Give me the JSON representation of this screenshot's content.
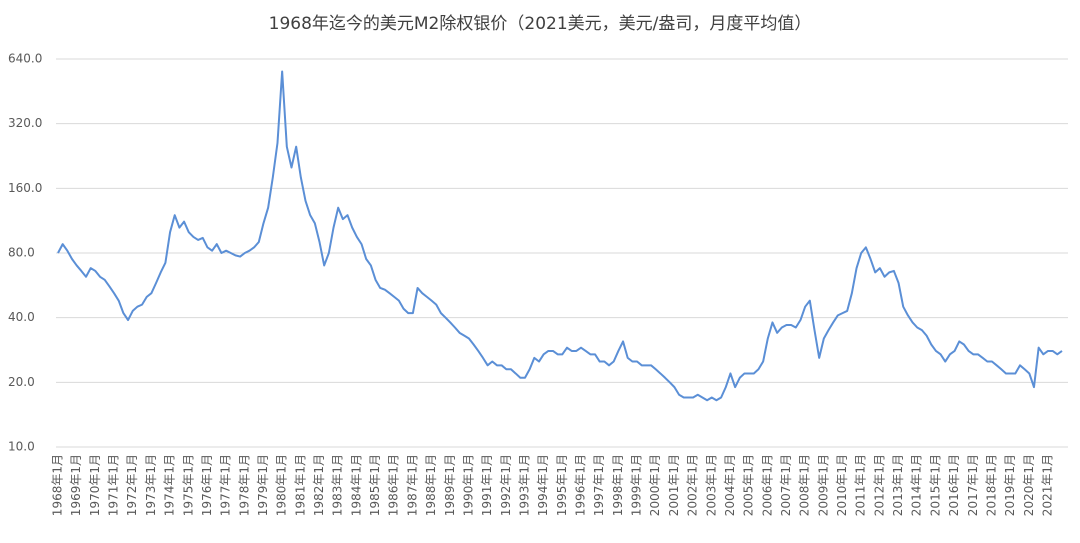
{
  "chart_data": {
    "type": "line",
    "title": "1968年迄今的美元M2除权银价（2021美元，美元/盎司，月度平均值）",
    "categories": [
      "1968年1月",
      null,
      null,
      null,
      "1969年1月",
      null,
      null,
      null,
      "1970年1月",
      null,
      null,
      null,
      "1971年1月",
      null,
      null,
      null,
      "1972年1月",
      null,
      null,
      null,
      "1973年1月",
      null,
      null,
      null,
      "1974年1月",
      null,
      null,
      null,
      "1975年1月",
      null,
      null,
      null,
      "1976年1月",
      null,
      null,
      null,
      "1977年1月",
      null,
      null,
      null,
      "1978年1月",
      null,
      null,
      null,
      "1979年1月",
      null,
      null,
      null,
      "1980年1月",
      null,
      null,
      null,
      "1981年1月",
      null,
      null,
      null,
      "1982年1月",
      null,
      null,
      null,
      "1983年1月",
      null,
      null,
      null,
      "1984年1月",
      null,
      null,
      null,
      "1985年1月",
      null,
      null,
      null,
      "1986年1月",
      null,
      null,
      null,
      "1987年1月",
      null,
      null,
      null,
      "1988年1月",
      null,
      null,
      null,
      "1989年1月",
      null,
      null,
      null,
      "1990年1月",
      null,
      null,
      null,
      "1991年1月",
      null,
      null,
      null,
      "1992年1月",
      null,
      null,
      null,
      "1993年1月",
      null,
      null,
      null,
      "1994年1月",
      null,
      null,
      null,
      "1995年1月",
      null,
      null,
      null,
      "1996年1月",
      null,
      null,
      null,
      "1997年1月",
      null,
      null,
      null,
      "1998年1月",
      null,
      null,
      null,
      "1999年1月",
      null,
      null,
      null,
      "2000年1月",
      null,
      null,
      null,
      "2001年1月",
      null,
      null,
      null,
      "2002年1月",
      null,
      null,
      null,
      "2003年1月",
      null,
      null,
      null,
      "2004年1月",
      null,
      null,
      null,
      "2005年1月",
      null,
      null,
      null,
      "2006年1月",
      null,
      null,
      null,
      "2007年1月",
      null,
      null,
      null,
      "2008年1月",
      null,
      null,
      null,
      "2009年1月",
      null,
      null,
      null,
      "2010年1月",
      null,
      null,
      null,
      "2011年1月",
      null,
      null,
      null,
      "2012年1月",
      null,
      null,
      null,
      "2013年1月",
      null,
      null,
      null,
      "2014年1月",
      null,
      null,
      null,
      "2015年1月",
      null,
      null,
      null,
      "2016年1月",
      null,
      null,
      null,
      "2017年1月",
      null,
      null,
      null,
      "2018年1月",
      null,
      null,
      null,
      "2019年1月",
      null,
      null,
      null,
      "2020年1月",
      null,
      null,
      null,
      "2021年1月",
      null,
      null,
      null
    ],
    "series": [
      {
        "color": "#5b8fd6",
        "values": [
          80,
          88,
          82,
          75,
          70,
          66,
          62,
          68,
          66,
          62,
          60,
          56,
          52,
          48,
          42,
          39,
          43,
          45,
          46,
          50,
          52,
          58,
          65,
          72,
          100,
          120,
          105,
          112,
          100,
          95,
          92,
          94,
          85,
          82,
          88,
          80,
          82,
          80,
          78,
          77,
          80,
          82,
          85,
          90,
          110,
          130,
          180,
          260,
          560,
          250,
          200,
          250,
          180,
          140,
          120,
          110,
          90,
          70,
          80,
          105,
          130,
          115,
          120,
          105,
          95,
          88,
          75,
          70,
          60,
          55,
          54,
          52,
          50,
          48,
          44,
          42,
          42,
          55,
          52,
          50,
          48,
          46,
          42,
          40,
          38,
          36,
          34,
          33,
          32,
          30,
          28,
          26,
          24,
          25,
          24,
          24,
          23,
          23,
          22,
          21,
          21,
          23,
          26,
          25,
          27,
          28,
          28,
          27,
          27,
          29,
          28,
          28,
          29,
          28,
          27,
          27,
          25,
          25,
          24,
          25,
          28,
          31,
          26,
          25,
          25,
          24,
          24,
          24,
          23,
          22,
          21,
          20,
          19,
          17.5,
          17,
          17,
          17,
          17.5,
          17,
          16.5,
          17,
          16.5,
          17,
          19,
          22,
          19,
          21,
          22,
          22,
          22,
          23,
          25,
          32,
          38,
          34,
          36,
          37,
          37,
          36,
          39,
          45,
          48,
          35,
          26,
          32,
          35,
          38,
          41,
          42,
          43,
          52,
          68,
          80,
          85,
          75,
          65,
          68,
          62,
          65,
          66,
          58,
          45,
          41,
          38,
          36,
          35,
          33,
          30,
          28,
          27,
          25,
          27,
          28,
          31,
          30,
          28,
          27,
          27,
          26,
          25,
          25,
          24,
          23,
          22,
          22,
          22,
          24,
          23,
          22,
          19,
          29,
          27,
          28,
          28,
          27,
          28
        ]
      }
    ],
    "log_scale": true,
    "grid": true,
    "ylim": [
      10,
      640
    ],
    "yticks": [
      {
        "value": 10,
        "label": "10.0"
      },
      {
        "value": 20,
        "label": "20.0"
      },
      {
        "value": 40,
        "label": "40.0"
      },
      {
        "value": 80,
        "label": "80.0"
      },
      {
        "value": 160,
        "label": "160.0"
      },
      {
        "value": 320,
        "label": "320.0"
      },
      {
        "value": 640,
        "label": "640.0"
      }
    ]
  }
}
